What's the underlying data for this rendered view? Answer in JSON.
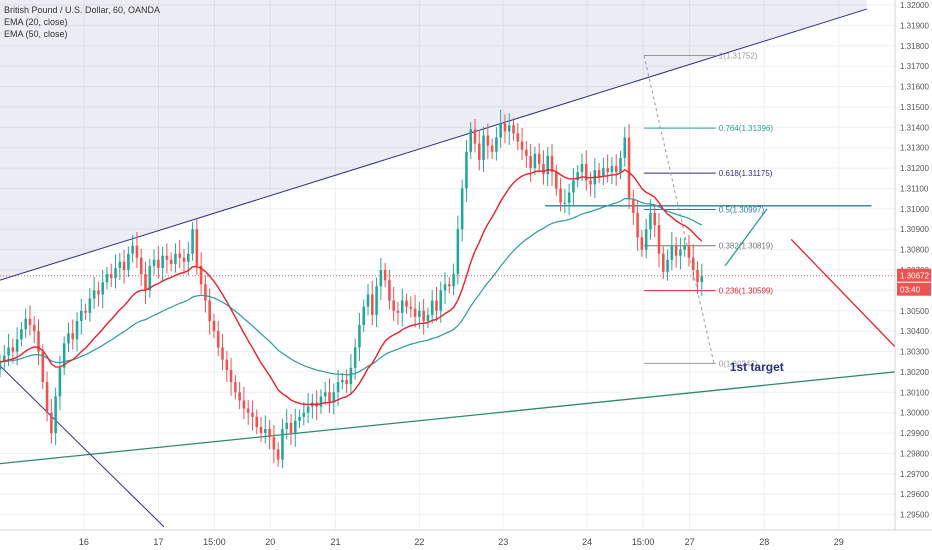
{
  "legend": {
    "title": "British Pound / U.S. Dollar, 60, OANDA",
    "ema20": "EMA (20, close)",
    "ema50": "EMA (50, close)"
  },
  "colors": {
    "up": "#26a69a",
    "down": "#ef5350",
    "ema20": "#e8212b",
    "ema50": "#2d9aa0",
    "channel_upper": "#2a2e8c",
    "channel_lower": "#2e8b67",
    "fib_1": "#999999",
    "fib_764": "#2e9f9a",
    "fib_618": "#2a2e8c",
    "fib_5": "#2e7f99",
    "fib_382": "#777777",
    "fib_236": "#e8212b",
    "target": "#2a2e8c",
    "price_tag": "#ef5350"
  },
  "chart_data": {
    "type": "candlestick",
    "symbol": "British Pound / U.S. Dollar",
    "timeframe": "60",
    "source": "OANDA",
    "indicators": [
      "EMA (20, close)",
      "EMA (50, close)"
    ],
    "ylim": [
      1.294,
      1.32
    ],
    "y_ticks": [
      "1.32000",
      "1.31900",
      "1.31800",
      "1.31700",
      "1.31600",
      "1.31500",
      "1.31400",
      "1.31300",
      "1.31200",
      "1.31100",
      "1.31000",
      "1.30900",
      "1.30800",
      "1.30700",
      "1.30600",
      "1.30500",
      "1.30400",
      "1.30300",
      "1.30200",
      "1.30100",
      "1.30000",
      "1.29900",
      "1.29800",
      "1.29700",
      "1.29600",
      "1.29500"
    ],
    "x_ticks": [
      {
        "label": "16",
        "t": 0.09
      },
      {
        "label": "17",
        "t": 0.17
      },
      {
        "label": "15:00",
        "t": 0.23
      },
      {
        "label": "20",
        "t": 0.29
      },
      {
        "label": "21",
        "t": 0.36
      },
      {
        "label": "22",
        "t": 0.45
      },
      {
        "label": "23",
        "t": 0.54
      },
      {
        "label": "24",
        "t": 0.63
      },
      {
        "label": "15:00",
        "t": 0.69
      },
      {
        "label": "27",
        "t": 0.74
      },
      {
        "label": "28",
        "t": 0.82
      },
      {
        "label": "29",
        "t": 0.9
      }
    ],
    "last_price": "1.30672",
    "countdown": "03:40",
    "closes": [
      1.3025,
      1.3028,
      1.3032,
      1.303,
      1.3036,
      1.3041,
      1.3046,
      1.3043,
      1.304,
      1.303,
      1.3015,
      1.3,
      1.299,
      1.3008,
      1.3022,
      1.3034,
      1.3039,
      1.3036,
      1.3045,
      1.305,
      1.3049,
      1.3056,
      1.306,
      1.3058,
      1.3064,
      1.3068,
      1.3066,
      1.3071,
      1.3074,
      1.307,
      1.3078,
      1.3082,
      1.3076,
      1.3068,
      1.306,
      1.3072,
      1.3075,
      1.3071,
      1.3077,
      1.3075,
      1.3073,
      1.3078,
      1.3076,
      1.3074,
      1.3078,
      1.309,
      1.3072,
      1.3063,
      1.3055,
      1.3045,
      1.304,
      1.3032,
      1.3026,
      1.3021,
      1.3015,
      1.301,
      1.3006,
      1.3002,
      1.3,
      1.2998,
      1.2993,
      1.299,
      1.2992,
      1.2988,
      1.2982,
      1.2977,
      1.2992,
      1.2995,
      1.299,
      1.2996,
      1.2998,
      1.3,
      1.3003,
      1.3005,
      1.3003,
      1.3008,
      1.301,
      1.3005,
      1.301,
      1.3015,
      1.3016,
      1.3014,
      1.3022,
      1.3032,
      1.3043,
      1.3052,
      1.3058,
      1.3048,
      1.3062,
      1.307,
      1.3065,
      1.3055,
      1.305,
      1.3049,
      1.3055,
      1.3052,
      1.3051,
      1.3047,
      1.305,
      1.3045,
      1.3048,
      1.3055,
      1.305,
      1.306,
      1.3063,
      1.3062,
      1.3068,
      1.309,
      1.311,
      1.3128,
      1.3139,
      1.3132,
      1.3124,
      1.3136,
      1.3131,
      1.3128,
      1.3135,
      1.3142,
      1.3138,
      1.3141,
      1.3137,
      1.3133,
      1.3129,
      1.3126,
      1.312,
      1.3127,
      1.3122,
      1.3117,
      1.3126,
      1.3118,
      1.311,
      1.3103,
      1.3103,
      1.3108,
      1.3114,
      1.3118,
      1.3122,
      1.3114,
      1.3112,
      1.3119,
      1.3116,
      1.312,
      1.3118,
      1.3121,
      1.3118,
      1.3125,
      1.3135,
      1.3105,
      1.3098,
      1.3086,
      1.308,
      1.309,
      1.3098,
      1.3092,
      1.3078,
      1.3069,
      1.3075,
      1.3082,
      1.3077,
      1.308,
      1.3082,
      1.3076,
      1.307,
      1.3064,
      1.3067
    ],
    "fib_levels": [
      {
        "label": "1(1.31752)",
        "value": 1.31752
      },
      {
        "label": "0.764(1.31396)",
        "value": 1.31396
      },
      {
        "label": "0.618(1.31175)",
        "value": 1.31175
      },
      {
        "label": "0.5(1.30997)",
        "value": 1.30997
      },
      {
        "label": "0.382(1.30819)",
        "value": 1.30819
      },
      {
        "label": "0.236(1.30599)",
        "value": 1.30599
      },
      {
        "label": "0(1.30242)",
        "value": 1.30242
      }
    ],
    "annotations": [
      {
        "text": "1st target"
      }
    ]
  }
}
